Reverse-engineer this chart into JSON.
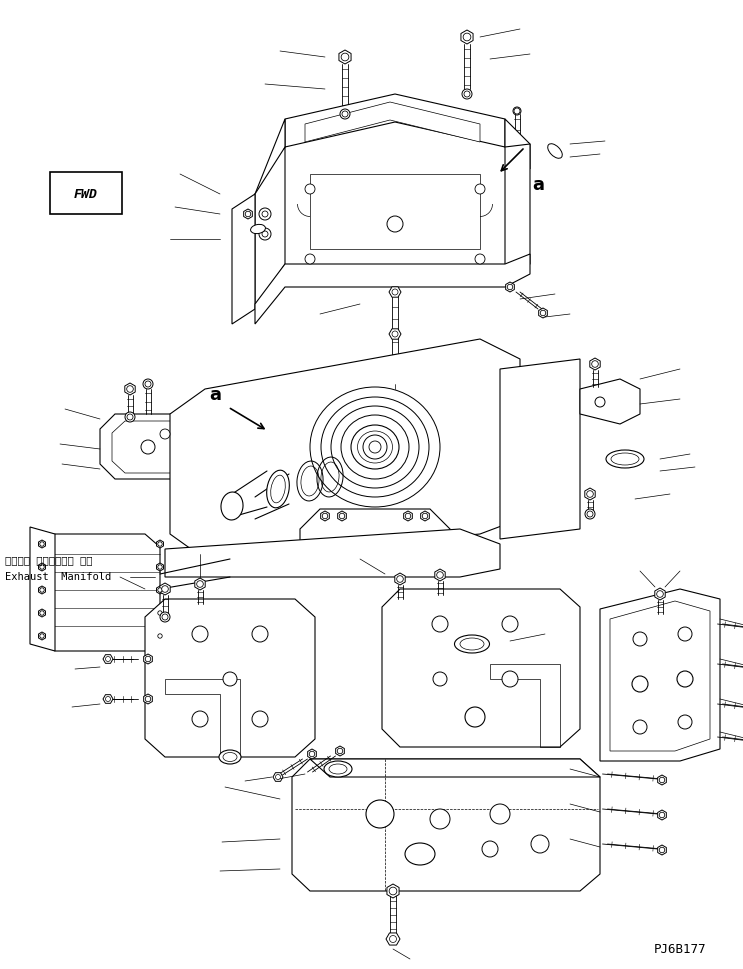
{
  "background_color": "#ffffff",
  "figure_width": 7.43,
  "figure_height": 9.7,
  "dpi": 100,
  "title_code": "PJ6B177",
  "line_color": "#000000",
  "lw_main": 0.8,
  "lw_thin": 0.5,
  "lw_thick": 1.0,
  "exhaust_label_jp": "エキゾー ストマニホー ルド",
  "exhaust_label_en": "Exhaust  Manifold"
}
